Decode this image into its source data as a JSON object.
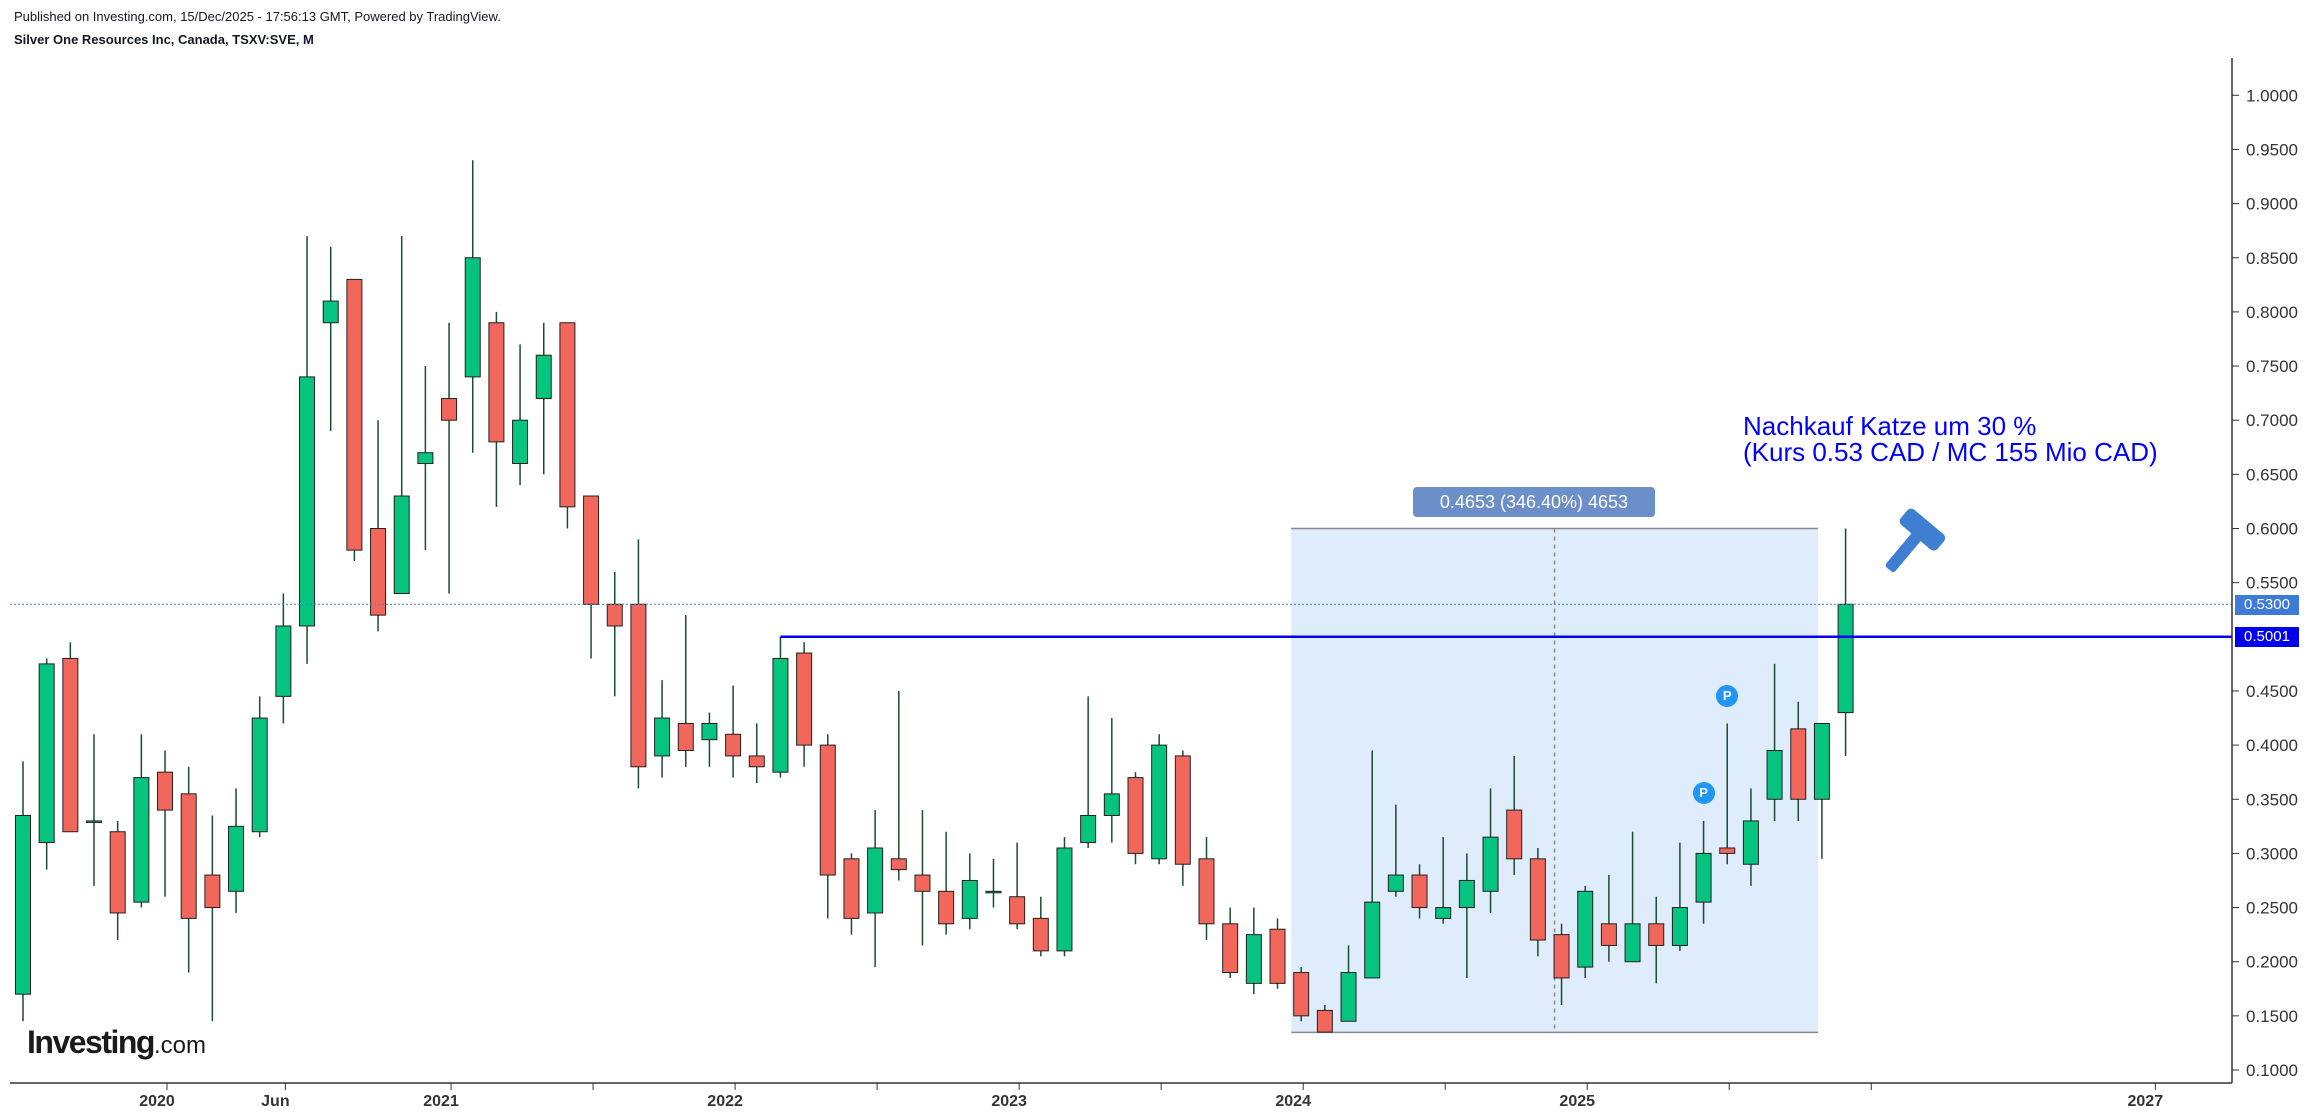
{
  "header": {
    "published": "Published on Investing.com, 15/Dec/2025 - 17:56:13 GMT, Powered by TradingView.",
    "symbol_line": "Silver One Resources Inc, Canada, TSXV:SVE, M"
  },
  "logo": {
    "main": "Investing",
    "suffix": ".com"
  },
  "annotation": {
    "line1": "Nachkauf Katze um 30 %",
    "line2": "(Kurs 0.53 CAD / MC 155 Mio CAD)"
  },
  "measure_label": "0.4653 (346.40%) 4653",
  "price_tags": {
    "current": "0.5300",
    "horizontal_line": "0.5001"
  },
  "marker_label": "P",
  "icons": [
    "hammer-icon"
  ],
  "colors": {
    "up": "#06c37f",
    "down": "#f2675b",
    "wick": "#1d4a33",
    "line": "#0000ee",
    "range_fill": "#deecfc"
  },
  "chart_data": {
    "type": "candlestick",
    "interval": "M",
    "ylim": [
      0.09,
      1.04
    ],
    "y_ticks": [
      "1.0000",
      "0.9500",
      "0.9000",
      "0.8500",
      "0.8000",
      "0.7500",
      "0.7000",
      "0.6500",
      "0.6000",
      "0.5500",
      "0.5300",
      "0.5001",
      "0.4500",
      "0.4000",
      "0.3500",
      "0.3000",
      "0.2500",
      "0.2000",
      "0.1500",
      "0.1000"
    ],
    "x_labels": [
      {
        "label": "2020",
        "idx": 6.5
      },
      {
        "label": "Jun",
        "idx": 11.5
      },
      {
        "label": "2021",
        "idx": 18.5
      },
      {
        "label": "2022",
        "idx": 30.5
      },
      {
        "label": "2023",
        "idx": 42.5
      },
      {
        "label": "2024",
        "idx": 54.5
      },
      {
        "label": "2025",
        "idx": 66.5
      },
      {
        "label": "2027",
        "idx": 90.5
      }
    ],
    "candles": [
      [
        0.17,
        0.385,
        0.145,
        0.335
      ],
      [
        0.31,
        0.48,
        0.285,
        0.475
      ],
      [
        0.48,
        0.495,
        0.32,
        0.32
      ],
      [
        0.33,
        0.41,
        0.27,
        0.33
      ],
      [
        0.32,
        0.33,
        0.22,
        0.245
      ],
      [
        0.255,
        0.41,
        0.25,
        0.37
      ],
      [
        0.375,
        0.395,
        0.26,
        0.34
      ],
      [
        0.355,
        0.38,
        0.19,
        0.24
      ],
      [
        0.28,
        0.335,
        0.145,
        0.25
      ],
      [
        0.265,
        0.36,
        0.245,
        0.325
      ],
      [
        0.32,
        0.445,
        0.315,
        0.425
      ],
      [
        0.445,
        0.54,
        0.42,
        0.51
      ],
      [
        0.51,
        0.87,
        0.475,
        0.74
      ],
      [
        0.79,
        0.86,
        0.69,
        0.81
      ],
      [
        0.83,
        0.83,
        0.57,
        0.58
      ],
      [
        0.6,
        0.7,
        0.505,
        0.52
      ],
      [
        0.54,
        0.87,
        0.54,
        0.63
      ],
      [
        0.66,
        0.75,
        0.58,
        0.67
      ],
      [
        0.72,
        0.79,
        0.54,
        0.7
      ],
      [
        0.74,
        0.94,
        0.67,
        0.85
      ],
      [
        0.79,
        0.8,
        0.62,
        0.68
      ],
      [
        0.66,
        0.77,
        0.64,
        0.7
      ],
      [
        0.72,
        0.79,
        0.65,
        0.76
      ],
      [
        0.79,
        0.79,
        0.6,
        0.62
      ],
      [
        0.63,
        0.63,
        0.48,
        0.53
      ],
      [
        0.53,
        0.56,
        0.445,
        0.51
      ],
      [
        0.53,
        0.59,
        0.36,
        0.38
      ],
      [
        0.39,
        0.46,
        0.37,
        0.425
      ],
      [
        0.42,
        0.52,
        0.38,
        0.395
      ],
      [
        0.405,
        0.43,
        0.38,
        0.42
      ],
      [
        0.41,
        0.455,
        0.37,
        0.39
      ],
      [
        0.39,
        0.42,
        0.365,
        0.38
      ],
      [
        0.375,
        0.5001,
        0.37,
        0.48
      ],
      [
        0.485,
        0.495,
        0.38,
        0.4
      ],
      [
        0.4,
        0.41,
        0.24,
        0.28
      ],
      [
        0.295,
        0.3,
        0.225,
        0.24
      ],
      [
        0.245,
        0.34,
        0.195,
        0.305
      ],
      [
        0.295,
        0.45,
        0.275,
        0.285
      ],
      [
        0.28,
        0.34,
        0.215,
        0.265
      ],
      [
        0.265,
        0.32,
        0.225,
        0.235
      ],
      [
        0.24,
        0.3,
        0.23,
        0.275
      ],
      [
        0.265,
        0.295,
        0.25,
        0.265
      ],
      [
        0.26,
        0.31,
        0.23,
        0.235
      ],
      [
        0.24,
        0.26,
        0.205,
        0.21
      ],
      [
        0.21,
        0.315,
        0.205,
        0.305
      ],
      [
        0.31,
        0.445,
        0.305,
        0.335
      ],
      [
        0.335,
        0.425,
        0.31,
        0.355
      ],
      [
        0.37,
        0.375,
        0.29,
        0.3
      ],
      [
        0.295,
        0.41,
        0.29,
        0.4
      ],
      [
        0.39,
        0.395,
        0.27,
        0.29
      ],
      [
        0.295,
        0.315,
        0.22,
        0.235
      ],
      [
        0.235,
        0.25,
        0.185,
        0.19
      ],
      [
        0.18,
        0.25,
        0.17,
        0.225
      ],
      [
        0.23,
        0.24,
        0.175,
        0.18
      ],
      [
        0.19,
        0.195,
        0.145,
        0.15
      ],
      [
        0.155,
        0.16,
        0.135,
        0.135
      ],
      [
        0.145,
        0.215,
        0.145,
        0.19
      ],
      [
        0.185,
        0.395,
        0.185,
        0.255
      ],
      [
        0.265,
        0.345,
        0.26,
        0.28
      ],
      [
        0.28,
        0.29,
        0.24,
        0.25
      ],
      [
        0.24,
        0.315,
        0.235,
        0.25
      ],
      [
        0.25,
        0.3,
        0.185,
        0.275
      ],
      [
        0.265,
        0.36,
        0.245,
        0.315
      ],
      [
        0.34,
        0.39,
        0.28,
        0.295
      ],
      [
        0.295,
        0.305,
        0.205,
        0.22
      ],
      [
        0.225,
        0.235,
        0.16,
        0.185
      ],
      [
        0.195,
        0.27,
        0.185,
        0.265
      ],
      [
        0.235,
        0.28,
        0.2,
        0.215
      ],
      [
        0.2,
        0.32,
        0.2,
        0.235
      ],
      [
        0.235,
        0.26,
        0.18,
        0.215
      ],
      [
        0.215,
        0.31,
        0.21,
        0.25
      ],
      [
        0.255,
        0.33,
        0.235,
        0.3
      ],
      [
        0.305,
        0.42,
        0.29,
        0.3
      ],
      [
        0.29,
        0.36,
        0.27,
        0.33
      ],
      [
        0.35,
        0.475,
        0.33,
        0.395
      ],
      [
        0.415,
        0.44,
        0.33,
        0.35
      ],
      [
        0.35,
        0.42,
        0.295,
        0.42
      ],
      [
        0.43,
        0.6,
        0.39,
        0.53
      ]
    ],
    "horizontal_line": {
      "value": 0.5001,
      "from_idx": 32
    },
    "current_price": 0.53,
    "measure": {
      "from_idx": 54,
      "to_idx": 76,
      "low": 0.1347,
      "high": 0.6,
      "change": "0.4653 (346.40%) 4653"
    },
    "p_markers": [
      {
        "idx": 72,
        "value": 0.445
      },
      {
        "idx": 71,
        "value": 0.356
      }
    ]
  }
}
